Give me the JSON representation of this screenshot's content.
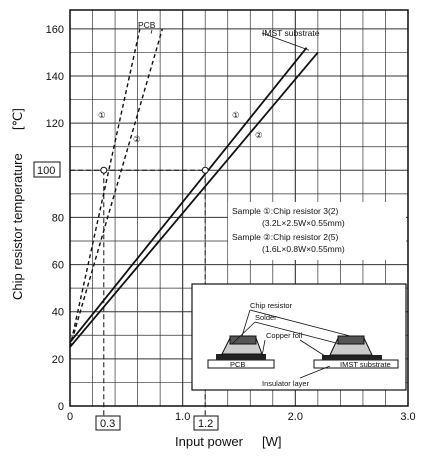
{
  "chart_data": {
    "type": "line",
    "xlabel": "Input power",
    "xunit": "[W]",
    "ylabel": "Chip resistor temperature",
    "yunit": "[℃]",
    "xlim": [
      0,
      3.0
    ],
    "ylim": [
      0,
      168
    ],
    "x_ticks": [
      "0",
      "1.0",
      "2.0",
      "3.0"
    ],
    "y_ticks": [
      "0",
      "20",
      "40",
      "60",
      "80",
      "100",
      "120",
      "140",
      "160"
    ],
    "grid": true,
    "series": [
      {
        "name": "PCB",
        "label_marker": "①",
        "style": "dashed",
        "x": [
          0,
          0.62
        ],
        "y": [
          25,
          160
        ]
      },
      {
        "name": "PCB",
        "label_marker": "②",
        "style": "dashed",
        "x": [
          0,
          0.82
        ],
        "y": [
          25,
          160
        ]
      },
      {
        "name": "IMST substrate",
        "label_marker": "①",
        "style": "solid",
        "x": [
          0,
          2.1
        ],
        "y": [
          27,
          152
        ]
      },
      {
        "name": "IMST substrate",
        "label_marker": "②",
        "style": "solid",
        "x": [
          0,
          2.2
        ],
        "y": [
          25,
          150
        ]
      }
    ],
    "annotations": {
      "pcb_label": "PCB",
      "imst_label": "IMST substrate",
      "ref_y": "100",
      "ref_x1": "0.3",
      "ref_x2": "1.2",
      "sample1_line1": "Sample ①:Chip resistor 3(2)",
      "sample1_line2": "(3.2L×2.5W×0.55mm)",
      "sample2_line1": "Sample ②:Chip resistor 2(5)",
      "sample2_line2": "(1.6L×0.8W×0.55mm)",
      "inset_chip": "Chip resistor",
      "inset_solder": "Solder",
      "inset_copper": "Copper foil",
      "inset_pcb": "PCB",
      "inset_imst": "IMST substrate",
      "inset_insulator": "Insulator layer"
    }
  }
}
